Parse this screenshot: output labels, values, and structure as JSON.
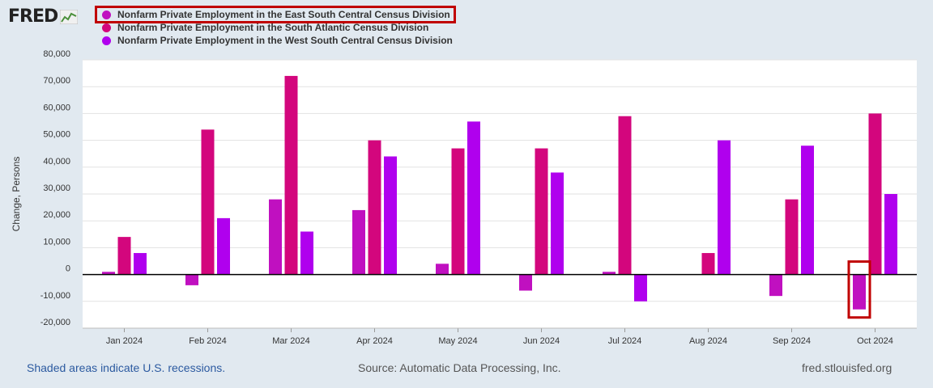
{
  "logo": {
    "text": "FRED"
  },
  "legend": [
    {
      "label": "Nonfarm Private Employment in the East South Central Census Division",
      "color": "#c010c0",
      "highlighted": true
    },
    {
      "label": "Nonfarm Private Employment in the South Atlantic Census Division",
      "color": "#d3067d",
      "highlighted": false
    },
    {
      "label": "Nonfarm Private Employment in the West South Central Census Division",
      "color": "#b000ee",
      "highlighted": false
    }
  ],
  "chart_data": {
    "type": "bar",
    "categories": [
      "Jan 2024",
      "Feb 2024",
      "Mar 2024",
      "Apr 2024",
      "May 2024",
      "Jun 2024",
      "Jul 2024",
      "Aug 2024",
      "Sep 2024",
      "Oct 2024"
    ],
    "series": [
      {
        "name": "Nonfarm Private Employment in the East South Central Census Division",
        "color": "#c010c0",
        "values": [
          1000,
          -4000,
          28000,
          24000,
          4000,
          -6000,
          1000,
          0,
          -8000,
          -13000
        ]
      },
      {
        "name": "Nonfarm Private Employment in the South Atlantic Census Division",
        "color": "#d3067d",
        "values": [
          14000,
          54000,
          74000,
          50000,
          47000,
          47000,
          59000,
          8000,
          28000,
          60000
        ]
      },
      {
        "name": "Nonfarm Private Employment in the West South Central Census Division",
        "color": "#b000ee",
        "values": [
          8000,
          21000,
          16000,
          44000,
          57000,
          38000,
          -10000,
          50000,
          48000,
          30000
        ]
      }
    ],
    "ylabel": "Change, Persons",
    "xlabel": "",
    "ylim": [
      -20000,
      80000
    ],
    "yticks": [
      80000,
      70000,
      60000,
      50000,
      40000,
      30000,
      20000,
      10000,
      0,
      -10000,
      -20000
    ],
    "ytick_labels": [
      "80,000",
      "70,000",
      "60,000",
      "50,000",
      "40,000",
      "30,000",
      "20,000",
      "10,000",
      "0",
      "-10,000",
      "-20,000"
    ],
    "grid": true,
    "legend_position": "top-left",
    "annotation": {
      "category": "Oct 2024",
      "series": "Nonfarm Private Employment in the East South Central Census Division",
      "color": "#c00000"
    }
  },
  "footer": {
    "recession_note": "Shaded areas indicate U.S. recessions.",
    "source": "Source: Automatic Data Processing, Inc.",
    "site": "fred.stlouisfed.org"
  }
}
